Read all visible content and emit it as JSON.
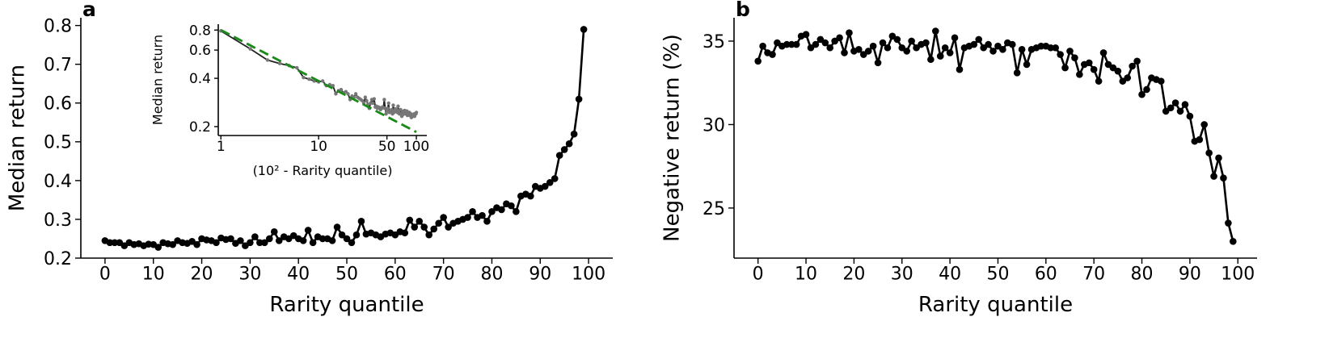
{
  "chart_data": [
    {
      "type": "line",
      "panel_label": "a",
      "xlabel": "Rarity quantile",
      "ylabel": "Median return",
      "xlim": [
        -5,
        105
      ],
      "ylim": [
        0.2,
        0.82
      ],
      "xticks": [
        0,
        10,
        20,
        30,
        40,
        50,
        60,
        70,
        80,
        90,
        100
      ],
      "yticks": [
        0.2,
        0.3,
        0.4,
        0.5,
        0.6,
        0.7,
        0.8
      ],
      "x": [
        0,
        1,
        2,
        3,
        4,
        5,
        6,
        7,
        8,
        9,
        10,
        11,
        12,
        13,
        14,
        15,
        16,
        17,
        18,
        19,
        20,
        21,
        22,
        23,
        24,
        25,
        26,
        27,
        28,
        29,
        30,
        31,
        32,
        33,
        34,
        35,
        36,
        37,
        38,
        39,
        40,
        41,
        42,
        43,
        44,
        45,
        46,
        47,
        48,
        49,
        50,
        51,
        52,
        53,
        54,
        55,
        56,
        57,
        58,
        59,
        60,
        61,
        62,
        63,
        64,
        65,
        66,
        67,
        68,
        69,
        70,
        71,
        72,
        73,
        74,
        75,
        76,
        77,
        78,
        79,
        80,
        81,
        82,
        83,
        84,
        85,
        86,
        87,
        88,
        89,
        90,
        91,
        92,
        93,
        94,
        95,
        96,
        97,
        98,
        99
      ],
      "series": [
        {
          "color": "#000000",
          "marker_color": "#000000",
          "markers": true,
          "linestyle": "solid",
          "values": [
            0.245,
            0.24,
            0.24,
            0.24,
            0.232,
            0.24,
            0.235,
            0.237,
            0.232,
            0.236,
            0.235,
            0.228,
            0.24,
            0.237,
            0.235,
            0.245,
            0.24,
            0.238,
            0.243,
            0.235,
            0.25,
            0.247,
            0.245,
            0.24,
            0.252,
            0.248,
            0.25,
            0.238,
            0.245,
            0.232,
            0.24,
            0.255,
            0.24,
            0.24,
            0.25,
            0.268,
            0.245,
            0.255,
            0.25,
            0.258,
            0.25,
            0.245,
            0.272,
            0.24,
            0.255,
            0.25,
            0.25,
            0.245,
            0.28,
            0.26,
            0.25,
            0.24,
            0.26,
            0.295,
            0.262,
            0.265,
            0.26,
            0.255,
            0.262,
            0.265,
            0.26,
            0.268,
            0.265,
            0.298,
            0.28,
            0.295,
            0.28,
            0.26,
            0.275,
            0.29,
            0.305,
            0.28,
            0.29,
            0.295,
            0.3,
            0.305,
            0.32,
            0.305,
            0.31,
            0.295,
            0.32,
            0.33,
            0.325,
            0.34,
            0.335,
            0.32,
            0.36,
            0.365,
            0.36,
            0.385,
            0.38,
            0.385,
            0.395,
            0.405,
            0.465,
            0.48,
            0.495,
            0.52,
            0.61,
            0.79
          ]
        }
      ]
    },
    {
      "type": "line",
      "panel_label": "b",
      "xlabel": "Rarity quantile",
      "ylabel": "Negative return (%)",
      "xlim": [
        -5,
        104
      ],
      "ylim": [
        22,
        36.4
      ],
      "xticks": [
        0,
        10,
        20,
        30,
        40,
        50,
        60,
        70,
        80,
        90,
        100
      ],
      "yticks": [
        25,
        30,
        35
      ],
      "x": [
        0,
        1,
        2,
        3,
        4,
        5,
        6,
        7,
        8,
        9,
        10,
        11,
        12,
        13,
        14,
        15,
        16,
        17,
        18,
        19,
        20,
        21,
        22,
        23,
        24,
        25,
        26,
        27,
        28,
        29,
        30,
        31,
        32,
        33,
        34,
        35,
        36,
        37,
        38,
        39,
        40,
        41,
        42,
        43,
        44,
        45,
        46,
        47,
        48,
        49,
        50,
        51,
        52,
        53,
        54,
        55,
        56,
        57,
        58,
        59,
        60,
        61,
        62,
        63,
        64,
        65,
        66,
        67,
        68,
        69,
        70,
        71,
        72,
        73,
        74,
        75,
        76,
        77,
        78,
        79,
        80,
        81,
        82,
        83,
        84,
        85,
        86,
        87,
        88,
        89,
        90,
        91,
        92,
        93,
        94,
        95,
        96,
        97,
        98,
        99
      ],
      "series": [
        {
          "color": "#000000",
          "marker_color": "#000000",
          "markers": true,
          "linestyle": "solid",
          "values": [
            33.8,
            34.7,
            34.3,
            34.2,
            34.9,
            34.7,
            34.8,
            34.8,
            34.8,
            35.3,
            35.4,
            34.6,
            34.8,
            35.1,
            34.9,
            34.6,
            35.0,
            35.2,
            34.3,
            35.5,
            34.4,
            34.5,
            34.2,
            34.4,
            34.7,
            33.7,
            34.9,
            34.6,
            35.3,
            35.1,
            34.6,
            34.4,
            35.0,
            34.6,
            34.8,
            34.9,
            33.9,
            35.6,
            34.1,
            34.6,
            34.3,
            35.2,
            33.3,
            34.6,
            34.7,
            34.8,
            35.1,
            34.6,
            34.8,
            34.4,
            34.7,
            34.5,
            34.9,
            34.8,
            33.1,
            34.5,
            33.6,
            34.5,
            34.6,
            34.7,
            34.7,
            34.6,
            34.6,
            34.2,
            33.4,
            34.4,
            34.0,
            33.0,
            33.6,
            33.7,
            33.3,
            32.6,
            34.3,
            33.6,
            33.4,
            33.2,
            32.6,
            32.8,
            33.5,
            33.8,
            31.8,
            32.1,
            32.8,
            32.7,
            32.6,
            30.8,
            31.0,
            31.3,
            30.8,
            31.2,
            30.5,
            29.0,
            29.1,
            30.0,
            28.3,
            26.9,
            28.0,
            26.8,
            24.1,
            23.0
          ]
        }
      ]
    },
    {
      "type": "line",
      "xlabel": "(10² - Rarity quantile)",
      "ylabel": "Median return",
      "xscale": "log",
      "yscale": "log",
      "xlim": [
        0.94,
        128
      ],
      "ylim": [
        0.176,
        0.87
      ],
      "xticks": [
        1,
        10,
        50,
        100
      ],
      "yticks": [
        0.2,
        0.4,
        0.6,
        0.8
      ],
      "x": [
        1,
        2,
        3,
        4,
        5,
        6,
        7,
        8,
        9,
        10,
        11,
        12,
        13,
        14,
        15,
        16,
        17,
        18,
        19,
        20,
        21,
        22,
        23,
        24,
        25,
        26,
        27,
        28,
        29,
        30,
        31,
        32,
        33,
        34,
        35,
        36,
        37,
        38,
        39,
        40,
        41,
        42,
        43,
        44,
        45,
        46,
        47,
        48,
        49,
        50,
        51,
        52,
        53,
        54,
        55,
        56,
        57,
        58,
        59,
        60,
        61,
        62,
        63,
        64,
        65,
        66,
        67,
        68,
        69,
        70,
        71,
        72,
        73,
        74,
        75,
        76,
        77,
        78,
        79,
        80,
        81,
        82,
        83,
        84,
        85,
        86,
        87,
        88,
        89,
        90,
        91,
        92,
        93,
        94,
        95,
        96,
        97,
        98,
        99,
        100
      ],
      "series": [
        {
          "color": "#222222",
          "marker_color": "#777777",
          "markers": true,
          "linestyle": "solid",
          "values": [
            0.79,
            0.61,
            0.52,
            0.495,
            0.48,
            0.465,
            0.405,
            0.395,
            0.385,
            0.38,
            0.385,
            0.36,
            0.365,
            0.36,
            0.32,
            0.335,
            0.34,
            0.325,
            0.33,
            0.32,
            0.295,
            0.31,
            0.305,
            0.32,
            0.305,
            0.3,
            0.295,
            0.29,
            0.28,
            0.305,
            0.29,
            0.275,
            0.26,
            0.28,
            0.295,
            0.28,
            0.298,
            0.265,
            0.268,
            0.26,
            0.265,
            0.262,
            0.255,
            0.26,
            0.265,
            0.262,
            0.295,
            0.26,
            0.24,
            0.25,
            0.26,
            0.28,
            0.245,
            0.25,
            0.25,
            0.255,
            0.24,
            0.272,
            0.245,
            0.25,
            0.258,
            0.25,
            0.255,
            0.245,
            0.268,
            0.25,
            0.24,
            0.24,
            0.255,
            0.24,
            0.232,
            0.245,
            0.238,
            0.25,
            0.248,
            0.252,
            0.24,
            0.245,
            0.247,
            0.25,
            0.235,
            0.243,
            0.238,
            0.24,
            0.245,
            0.235,
            0.237,
            0.24,
            0.228,
            0.235,
            0.236,
            0.232,
            0.237,
            0.235,
            0.24,
            0.232,
            0.24,
            0.24,
            0.24,
            0.245
          ]
        },
        {
          "color": "#1a8a1a",
          "markers": false,
          "linestyle": "dashed",
          "x": [
            1,
            100
          ],
          "values": [
            0.8,
            0.185
          ]
        }
      ]
    }
  ]
}
